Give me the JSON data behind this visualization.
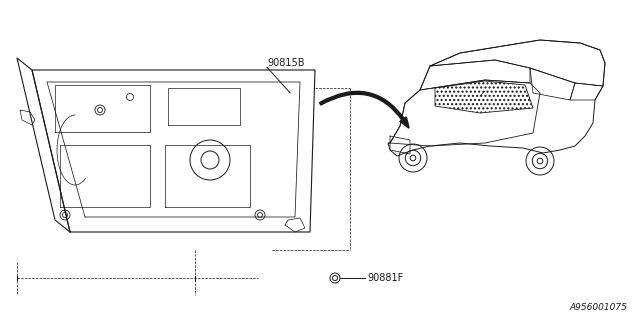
{
  "background_color": "#ffffff",
  "line_color": "#1a1a1a",
  "label_color": "#1a1a1a",
  "part_label_1": "90815B",
  "part_label_2": "90881F",
  "diagram_id": "A956001075",
  "fig_width": 6.4,
  "fig_height": 3.2,
  "dpi": 100
}
